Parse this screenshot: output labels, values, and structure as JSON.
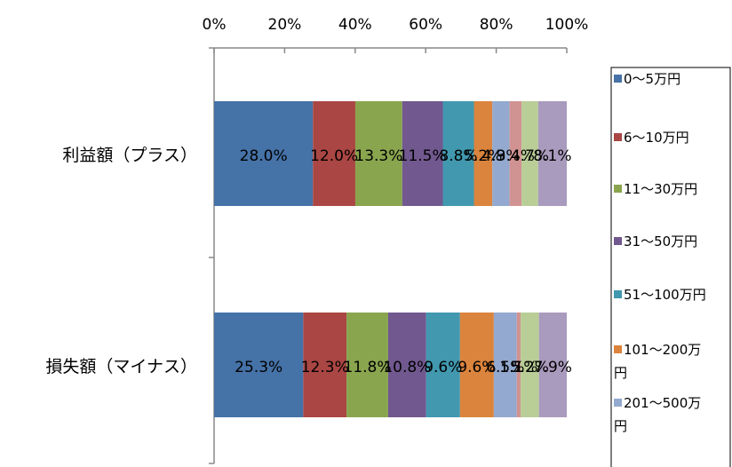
{
  "chart_data": {
    "type": "bar",
    "orientation": "horizontal",
    "stacked": "percent",
    "categories": [
      "利益額（プラス）",
      "損失額（マイナス）"
    ],
    "xlim": [
      0,
      100
    ],
    "x_ticks": [
      "0%",
      "20%",
      "40%",
      "60%",
      "80%",
      "100%"
    ],
    "grid": false,
    "legend_position": "right",
    "series": [
      {
        "name": "0〜5万円",
        "color": "#4572A7",
        "values": [
          28.0,
          25.3
        ],
        "labels": [
          "28.0%",
          "25.3%"
        ]
      },
      {
        "name": "6〜10万円",
        "color": "#AA4643",
        "values": [
          12.0,
          12.3
        ],
        "labels": [
          "12.0%",
          "12.3%"
        ]
      },
      {
        "name": "11〜30万円",
        "color": "#89A54E",
        "values": [
          13.3,
          11.8
        ],
        "labels": [
          "13.3%",
          "11.8%"
        ]
      },
      {
        "name": "31〜50万円",
        "color": "#71588F",
        "values": [
          11.5,
          10.8
        ],
        "labels": [
          "11.5%",
          "10.8%"
        ]
      },
      {
        "name": "51〜100万円",
        "color": "#4198AF",
        "values": [
          8.8,
          9.6
        ],
        "labels": [
          "8.8%",
          "9.6%"
        ]
      },
      {
        "name": "101〜200万円",
        "color": "#DB843D",
        "values": [
          5.2,
          9.6
        ],
        "labels": [
          "5.2%",
          "9.6%"
        ]
      },
      {
        "name": "201〜500万円",
        "color": "#93A9CF",
        "values": [
          4.9,
          6.5
        ],
        "labels": [
          "4.9%",
          "6.5%"
        ]
      },
      {
        "name": "",
        "color": "#D19392",
        "values": [
          3.4,
          1.1
        ],
        "labels": [
          "3.4%",
          "1.1%"
        ]
      },
      {
        "name": "",
        "color": "#B9CD96",
        "values": [
          4.7,
          5.2
        ],
        "labels": [
          "4.7%",
          "5.2%"
        ]
      },
      {
        "name": "",
        "color": "#A99BBD",
        "values": [
          8.1,
          7.9
        ],
        "labels": [
          "8.1%",
          "7.9%"
        ]
      }
    ]
  }
}
